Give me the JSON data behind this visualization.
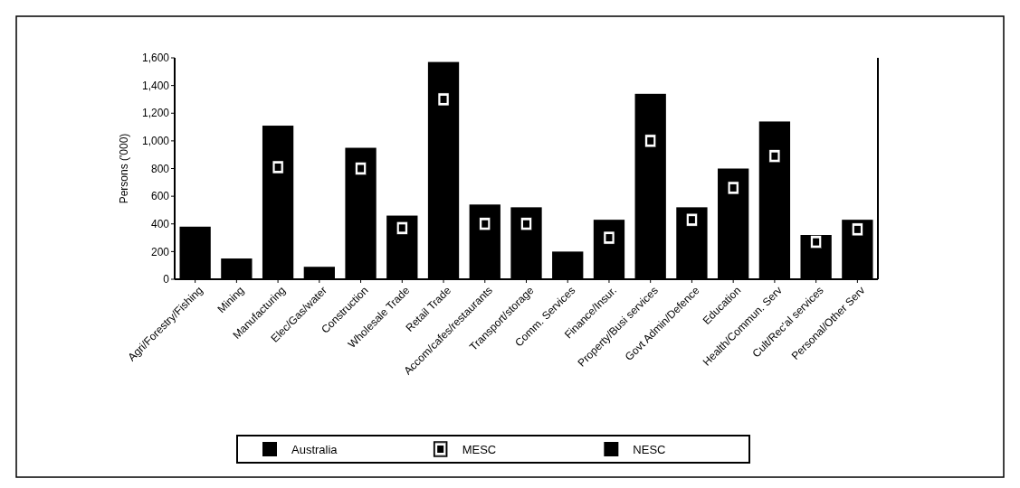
{
  "chart_data": {
    "type": "bar",
    "ylabel": "Persons ('000)",
    "categories": [
      "Agri/Forestry/Fishing",
      "Mining",
      "Manufacturing",
      "Elec/Gas/water",
      "Construction",
      "Wholesale Trade",
      "Retail Trade",
      "Accom/cafes/restaurants",
      "Transport/storage",
      "Comm. Services",
      "Finance/Insur.",
      "Property/Busi services",
      "Govt Admin/Defence",
      "Education",
      "Health/Commun. Serv",
      "Cult/Rec'al services",
      "Personal/Other Serv"
    ],
    "series": [
      {
        "name": "Australia",
        "color": "#000000",
        "values": [
          380,
          150,
          1110,
          90,
          950,
          460,
          1570,
          540,
          520,
          200,
          430,
          1340,
          520,
          800,
          1140,
          320,
          430
        ]
      },
      {
        "name": "MESC",
        "type": "scatter",
        "color": "#ffffff",
        "values": [
          null,
          null,
          810,
          null,
          800,
          370,
          1300,
          400,
          400,
          null,
          300,
          1000,
          430,
          660,
          890,
          270,
          360
        ]
      },
      {
        "name": "NESC",
        "color": "#000000",
        "values": [
          null,
          null,
          null,
          null,
          null,
          null,
          null,
          null,
          null,
          null,
          null,
          null,
          null,
          null,
          null,
          null,
          null
        ]
      }
    ],
    "marker": "square",
    "ylim": [
      0,
      1600
    ],
    "yticks": [
      0,
      200,
      400,
      600,
      800,
      {
        "value": 1000,
        "label": "1,000"
      },
      {
        "value": 1200,
        "label": "1,200"
      },
      {
        "value": 1400,
        "label": "1,400"
      },
      {
        "value": 1600,
        "label": "1,600"
      }
    ],
    "legend": "bottom"
  }
}
